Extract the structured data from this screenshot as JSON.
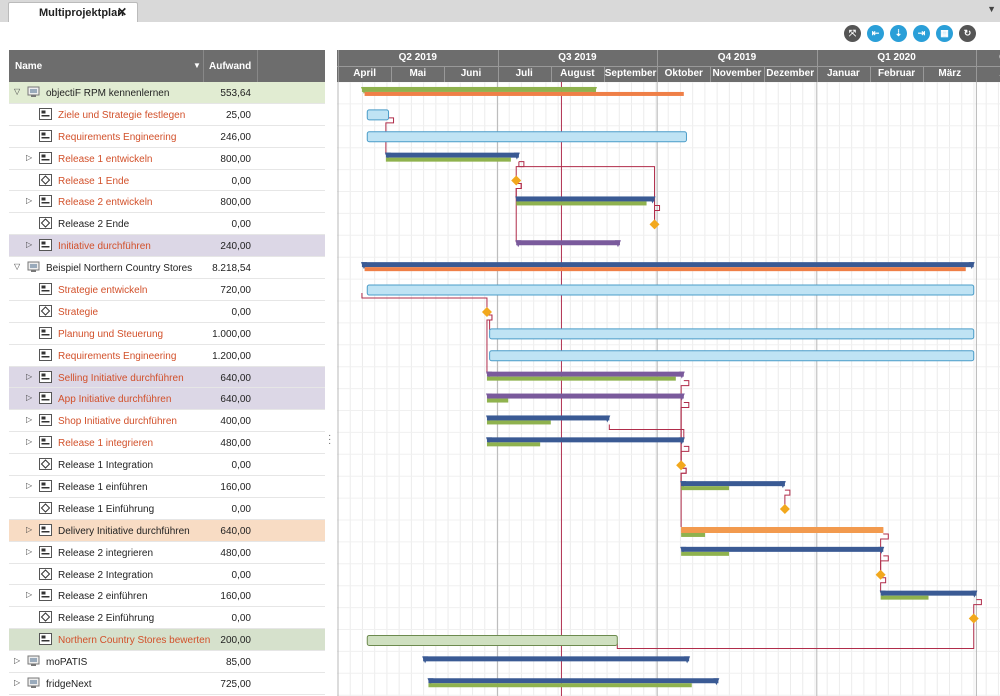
{
  "tab": {
    "title": "Multiprojektplan",
    "close": "✕"
  },
  "toolbar": [
    {
      "icon": "fit-icon",
      "glyph": "⤧",
      "color": "#555"
    },
    {
      "icon": "go-start-icon",
      "glyph": "⇤",
      "color": "#2a9fd8"
    },
    {
      "icon": "go-today-icon",
      "glyph": "⇣",
      "color": "#2a9fd8"
    },
    {
      "icon": "go-end-icon",
      "glyph": "⇥",
      "color": "#2a9fd8"
    },
    {
      "icon": "calendar-icon",
      "glyph": "▦",
      "color": "#2a9fd8"
    },
    {
      "icon": "refresh-icon",
      "glyph": "↻",
      "color": "#555"
    }
  ],
  "grid": {
    "col_name": "Name",
    "col_aufwand": "Aufwand",
    "rows": [
      {
        "name": "objectiF RPM kennenlernen",
        "value": "553,64",
        "level": 0,
        "expander": "▽",
        "icon": "project",
        "color": "black",
        "bg": "green"
      },
      {
        "name": "Ziele und Strategie festlegen",
        "value": "25,00",
        "level": 1,
        "expander": "",
        "icon": "task",
        "color": "red",
        "bg": ""
      },
      {
        "name": "Requirements Engineering",
        "value": "246,00",
        "level": 1,
        "expander": "",
        "icon": "task",
        "color": "red",
        "bg": ""
      },
      {
        "name": "Release 1 entwickeln",
        "value": "800,00",
        "level": 1,
        "expander": "▷",
        "icon": "task",
        "color": "red",
        "bg": ""
      },
      {
        "name": "Release 1 Ende",
        "value": "0,00",
        "level": 1,
        "expander": "",
        "icon": "milestone",
        "color": "red",
        "bg": ""
      },
      {
        "name": "Release 2 entwickeln",
        "value": "800,00",
        "level": 1,
        "expander": "▷",
        "icon": "task",
        "color": "red",
        "bg": ""
      },
      {
        "name": "Release 2 Ende",
        "value": "0,00",
        "level": 1,
        "expander": "",
        "icon": "milestone",
        "color": "black",
        "bg": ""
      },
      {
        "name": "Initiative durchführen",
        "value": "240,00",
        "level": 1,
        "expander": "▷",
        "icon": "task",
        "color": "red",
        "bg": "purple"
      },
      {
        "name": "Beispiel Northern Country Stores",
        "value": "8.218,54",
        "level": 0,
        "expander": "▽",
        "icon": "project",
        "color": "black",
        "bg": ""
      },
      {
        "name": "Strategie entwickeln",
        "value": "720,00",
        "level": 1,
        "expander": "",
        "icon": "task",
        "color": "red",
        "bg": ""
      },
      {
        "name": "Strategie",
        "value": "0,00",
        "level": 1,
        "expander": "",
        "icon": "milestone",
        "color": "red",
        "bg": ""
      },
      {
        "name": "Planung und Steuerung",
        "value": "1.000,00",
        "level": 1,
        "expander": "",
        "icon": "task",
        "color": "red",
        "bg": ""
      },
      {
        "name": "Requirements Engineering",
        "value": "1.200,00",
        "level": 1,
        "expander": "",
        "icon": "task",
        "color": "red",
        "bg": ""
      },
      {
        "name": "Selling Initiative durchführen",
        "value": "640,00",
        "level": 1,
        "expander": "▷",
        "icon": "task",
        "color": "red",
        "bg": "purple"
      },
      {
        "name": "App Initiative durchführen",
        "value": "640,00",
        "level": 1,
        "expander": "▷",
        "icon": "task",
        "color": "red",
        "bg": "purple"
      },
      {
        "name": "Shop Initiative durchführen",
        "value": "400,00",
        "level": 1,
        "expander": "▷",
        "icon": "task",
        "color": "red",
        "bg": ""
      },
      {
        "name": "Release 1 integrieren",
        "value": "480,00",
        "level": 1,
        "expander": "▷",
        "icon": "task",
        "color": "red",
        "bg": ""
      },
      {
        "name": "Release 1 Integration",
        "value": "0,00",
        "level": 1,
        "expander": "",
        "icon": "milestone",
        "color": "black",
        "bg": ""
      },
      {
        "name": "Release 1 einführen",
        "value": "160,00",
        "level": 1,
        "expander": "▷",
        "icon": "task",
        "color": "black",
        "bg": ""
      },
      {
        "name": "Release 1 Einführung",
        "value": "0,00",
        "level": 1,
        "expander": "",
        "icon": "milestone",
        "color": "black",
        "bg": ""
      },
      {
        "name": "Delivery Initiative durchführen",
        "value": "640,00",
        "level": 1,
        "expander": "▷",
        "icon": "task",
        "color": "black",
        "bg": "orange"
      },
      {
        "name": "Release 2 integrieren",
        "value": "480,00",
        "level": 1,
        "expander": "▷",
        "icon": "task",
        "color": "black",
        "bg": ""
      },
      {
        "name": "Release 2 Integration",
        "value": "0,00",
        "level": 1,
        "expander": "",
        "icon": "milestone",
        "color": "black",
        "bg": ""
      },
      {
        "name": "Release 2 einführen",
        "value": "160,00",
        "level": 1,
        "expander": "▷",
        "icon": "task",
        "color": "black",
        "bg": ""
      },
      {
        "name": "Release 2 Einführung",
        "value": "0,00",
        "level": 1,
        "expander": "",
        "icon": "milestone",
        "color": "black",
        "bg": ""
      },
      {
        "name": "Northern Country Stores bewerten",
        "value": "200,00",
        "level": 1,
        "expander": "",
        "icon": "task",
        "color": "red",
        "bg": "sage"
      },
      {
        "name": "moPATIS",
        "value": "85,00",
        "level": 0,
        "expander": "▷",
        "icon": "project",
        "color": "black",
        "bg": ""
      },
      {
        "name": "fridgeNext",
        "value": "725,00",
        "level": 0,
        "expander": "▷",
        "icon": "project",
        "color": "black",
        "bg": ""
      }
    ]
  },
  "timeline": {
    "quarters": [
      {
        "label": "Q2 2019",
        "start": 0,
        "months": 3
      },
      {
        "label": "Q3 2019",
        "start": 3,
        "months": 3
      },
      {
        "label": "Q4 2019",
        "start": 6,
        "months": 3
      },
      {
        "label": "Q1 2020",
        "start": 9,
        "months": 3
      },
      {
        "label": "Q",
        "start": 12,
        "months": 1
      }
    ],
    "months": [
      "April",
      "Mai",
      "Juni",
      "Juli",
      "August",
      "September",
      "Oktober",
      "November",
      "Dezember",
      "Januar",
      "Februar",
      "März",
      "A"
    ],
    "today_month": 4.2,
    "colors": {
      "blue_dark": "#3a5a94",
      "blue_light_fill": "#bfe3f4",
      "blue_light_stroke": "#4a9cc8",
      "green": "#8fb24e",
      "orange": "#ef7f47",
      "orange_task": "#f29a4e",
      "purple": "#7a5a9c",
      "milestone": "#f2a81d",
      "link": "#b02c4a",
      "sage_fill": "#cfe0c0",
      "sage_stroke": "#6c8a4e"
    },
    "bars": [
      {
        "row": 0,
        "type": "summary",
        "color": "green",
        "start": 0.45,
        "end": 4.85,
        "progress_color": "orange",
        "p_start": 0.5,
        "p_end": 6.5
      },
      {
        "row": 1,
        "type": "task",
        "start": 0.55,
        "end": 0.95
      },
      {
        "row": 2,
        "type": "task",
        "start": 0.55,
        "end": 6.55
      },
      {
        "row": 3,
        "type": "summary",
        "color": "blue_dark",
        "start": 0.9,
        "end": 3.4,
        "progress_color": "green",
        "p_start": 0.9,
        "p_end": 3.25
      },
      {
        "row": 4,
        "type": "milestone",
        "at": 3.35
      },
      {
        "row": 5,
        "type": "summary",
        "color": "blue_dark",
        "start": 3.35,
        "end": 5.95,
        "progress_color": "green",
        "p_start": 3.35,
        "p_end": 5.8
      },
      {
        "row": 6,
        "type": "milestone",
        "at": 5.95
      },
      {
        "row": 7,
        "type": "summary",
        "color": "purple",
        "start": 3.35,
        "end": 5.3
      },
      {
        "row": 8,
        "type": "summary",
        "color": "blue_dark",
        "start": 0.45,
        "end": 11.95,
        "progress_color": "orange",
        "p_start": 0.5,
        "p_end": 11.8
      },
      {
        "row": 9,
        "type": "task",
        "start": 0.55,
        "end": 11.95
      },
      {
        "row": 10,
        "type": "milestone",
        "at": 2.8
      },
      {
        "row": 11,
        "type": "task",
        "start": 2.85,
        "end": 11.95
      },
      {
        "row": 12,
        "type": "task",
        "start": 2.85,
        "end": 11.95
      },
      {
        "row": 13,
        "type": "summary",
        "color": "purple",
        "start": 2.8,
        "end": 6.5,
        "progress_color": "green",
        "p_start": 2.8,
        "p_end": 6.35
      },
      {
        "row": 14,
        "type": "summary",
        "color": "purple",
        "start": 2.8,
        "end": 6.5,
        "progress_color": "green",
        "p_start": 2.8,
        "p_end": 3.2
      },
      {
        "row": 15,
        "type": "summary",
        "color": "blue_dark",
        "start": 2.8,
        "end": 5.1,
        "progress_color": "green",
        "p_start": 2.8,
        "p_end": 4.0
      },
      {
        "row": 16,
        "type": "summary",
        "color": "blue_dark",
        "start": 2.8,
        "end": 6.5,
        "progress_color": "green",
        "p_start": 2.8,
        "p_end": 3.8
      },
      {
        "row": 17,
        "type": "milestone",
        "at": 6.45
      },
      {
        "row": 18,
        "type": "summary",
        "color": "blue_dark",
        "start": 6.45,
        "end": 8.4,
        "progress_color": "green",
        "p_start": 6.45,
        "p_end": 7.35
      },
      {
        "row": 19,
        "type": "milestone",
        "at": 8.4
      },
      {
        "row": 20,
        "type": "orange_task",
        "start": 6.45,
        "end": 10.25,
        "progress_color": "green",
        "p_start": 6.45,
        "p_end": 6.9
      },
      {
        "row": 21,
        "type": "summary",
        "color": "blue_dark",
        "start": 6.45,
        "end": 10.25,
        "progress_color": "green",
        "p_start": 6.45,
        "p_end": 7.35
      },
      {
        "row": 22,
        "type": "milestone",
        "at": 10.2
      },
      {
        "row": 23,
        "type": "summary",
        "color": "blue_dark",
        "start": 10.2,
        "end": 12.0,
        "progress_color": "green",
        "p_start": 10.2,
        "p_end": 11.1
      },
      {
        "row": 24,
        "type": "milestone",
        "at": 11.95
      },
      {
        "row": 25,
        "type": "sage_task",
        "start": 0.55,
        "end": 5.25
      },
      {
        "row": 26,
        "type": "summary",
        "color": "blue_dark",
        "start": 1.6,
        "end": 6.6
      },
      {
        "row": 27,
        "type": "summary",
        "color": "blue_dark",
        "start": 1.7,
        "end": 7.15,
        "progress_color": "green",
        "p_start": 1.7,
        "p_end": 6.65
      }
    ],
    "links": [
      {
        "from": 1,
        "to": 3,
        "from_at": 0.95,
        "to_at": 0.9
      },
      {
        "from": 3,
        "to": 4,
        "from_at": 3.4,
        "to_at": 3.35
      },
      {
        "from": 3,
        "to": 6,
        "from_at": 3.4,
        "to_at": 5.95
      },
      {
        "from": 4,
        "to": 5,
        "from_at": 3.35,
        "to_at": 3.35
      },
      {
        "from": 5,
        "to": 6,
        "from_at": 5.95,
        "to_at": 5.95
      },
      {
        "from": 4,
        "to": 7,
        "from_at": 3.35,
        "to_at": 3.35
      },
      {
        "from": 9,
        "to": 10,
        "from_at": 0.45,
        "to_at": 2.8
      },
      {
        "from": 10,
        "to": 11,
        "from_at": 2.8,
        "to_at": 2.85
      },
      {
        "from": 10,
        "to": 13,
        "from_at": 2.8,
        "to_at": 2.8
      },
      {
        "from": 13,
        "to": 17,
        "from_at": 6.5,
        "to_at": 6.45
      },
      {
        "from": 14,
        "to": 17,
        "from_at": 6.5,
        "to_at": 6.45
      },
      {
        "from": 15,
        "to": 16,
        "from_at": 5.1,
        "to_at": 6.5
      },
      {
        "from": 16,
        "to": 17,
        "from_at": 6.5,
        "to_at": 6.45
      },
      {
        "from": 17,
        "to": 18,
        "from_at": 6.45,
        "to_at": 6.45
      },
      {
        "from": 18,
        "to": 19,
        "from_at": 8.4,
        "to_at": 8.4
      },
      {
        "from": 17,
        "to": 20,
        "from_at": 6.45,
        "to_at": 6.45
      },
      {
        "from": 20,
        "to": 22,
        "from_at": 10.25,
        "to_at": 10.2
      },
      {
        "from": 21,
        "to": 22,
        "from_at": 10.25,
        "to_at": 10.2
      },
      {
        "from": 22,
        "to": 23,
        "from_at": 10.2,
        "to_at": 10.2
      },
      {
        "from": 23,
        "to": 24,
        "from_at": 12.0,
        "to_at": 11.95
      },
      {
        "from": 25,
        "to": 24,
        "from_at": 5.25,
        "to_at": 11.95
      }
    ]
  }
}
